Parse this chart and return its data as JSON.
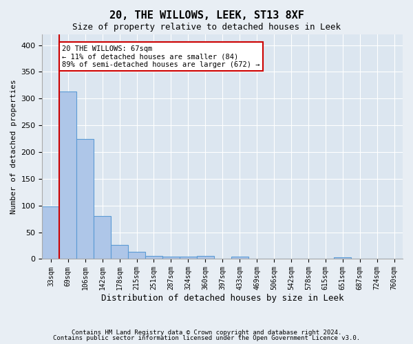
{
  "title1": "20, THE WILLOWS, LEEK, ST13 8XF",
  "title2": "Size of property relative to detached houses in Leek",
  "xlabel": "Distribution of detached houses by size in Leek",
  "ylabel": "Number of detached properties",
  "bar_values": [
    98,
    313,
    224,
    81,
    26,
    13,
    6,
    4,
    4,
    6,
    0,
    4,
    0,
    0,
    0,
    0,
    0,
    3,
    0,
    0,
    0
  ],
  "x_tick_labels": [
    "33sqm",
    "69sqm",
    "106sqm",
    "142sqm",
    "178sqm",
    "215sqm",
    "251sqm",
    "287sqm",
    "324sqm",
    "360sqm",
    "397sqm",
    "433sqm",
    "469sqm",
    "506sqm",
    "542sqm",
    "578sqm",
    "615sqm",
    "651sqm",
    "687sqm",
    "724sqm",
    "760sqm"
  ],
  "bar_color": "#aec6e8",
  "bar_edge_color": "#5b9bd5",
  "marker_line_color": "#cc0000",
  "annotation_text": "20 THE WILLOWS: 67sqm\n← 11% of detached houses are smaller (84)\n89% of semi-detached houses are larger (672) →",
  "annotation_box_color": "#ffffff",
  "annotation_box_edge": "#cc0000",
  "background_color": "#e8eef4",
  "plot_bg_color": "#dce6f0",
  "grid_color": "#ffffff",
  "ylim": [
    0,
    420
  ],
  "yticks": [
    0,
    50,
    100,
    150,
    200,
    250,
    300,
    350,
    400
  ],
  "footnote1": "Contains HM Land Registry data © Crown copyright and database right 2024.",
  "footnote2": "Contains public sector information licensed under the Open Government Licence v3.0.",
  "marker_bin_index": 1,
  "num_bins": 21
}
